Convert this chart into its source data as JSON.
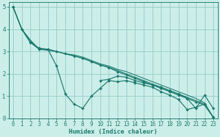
{
  "xlabel": "Humidex (Indice chaleur)",
  "bg_color": "#cceee8",
  "grid_color": "#99cccc",
  "line_color": "#1a7a6e",
  "xlim": [
    -0.5,
    23.5
  ],
  "ylim": [
    0,
    5.2
  ],
  "xticks": [
    0,
    1,
    2,
    3,
    4,
    5,
    6,
    7,
    8,
    9,
    10,
    11,
    12,
    13,
    14,
    15,
    16,
    17,
    18,
    19,
    20,
    21,
    22,
    23
  ],
  "yticks": [
    0,
    1,
    2,
    3,
    4,
    5
  ],
  "series": [
    {
      "y": [
        5.0,
        4.0,
        3.4,
        3.1,
        3.1,
        2.35,
        1.1,
        0.65,
        0.45,
        1.0,
        1.35,
        1.7,
        1.65,
        1.7,
        1.6,
        1.5,
        1.4,
        1.2,
        1.05,
        0.85,
        0.4,
        0.5,
        0.65,
        0.05
      ],
      "marker": "D",
      "markersize": 2.0,
      "linewidth": 0.9,
      "with_markers": true
    },
    {
      "y": [
        5.0,
        4.0,
        3.5,
        3.1,
        3.1,
        3.0,
        2.9,
        2.85,
        2.75,
        2.6,
        2.45,
        2.35,
        2.2,
        2.1,
        1.95,
        1.8,
        1.65,
        1.5,
        1.35,
        1.2,
        1.05,
        0.9,
        0.7,
        0.05
      ],
      "marker": null,
      "linewidth": 0.8,
      "with_markers": false
    },
    {
      "y": [
        5.0,
        4.0,
        3.5,
        3.1,
        3.05,
        3.0,
        2.9,
        2.8,
        2.7,
        2.55,
        2.4,
        2.3,
        2.15,
        2.0,
        1.85,
        1.7,
        1.55,
        1.4,
        1.25,
        1.1,
        0.95,
        0.8,
        0.65,
        0.05
      ],
      "marker": null,
      "linewidth": 0.8,
      "with_markers": false
    },
    {
      "y": [
        5.0,
        4.0,
        3.4,
        3.15,
        3.1,
        3.0,
        2.9,
        2.8,
        2.7,
        2.55,
        2.4,
        2.28,
        2.1,
        1.95,
        1.8,
        1.65,
        1.5,
        1.35,
        1.2,
        1.05,
        0.9,
        0.75,
        0.6,
        0.05
      ],
      "marker": "D",
      "markersize": 2.0,
      "linewidth": 0.9,
      "with_markers": true
    },
    {
      "y": [
        null,
        null,
        null,
        null,
        null,
        null,
        null,
        null,
        null,
        null,
        1.7,
        1.75,
        1.9,
        1.85,
        1.7,
        1.6,
        1.5,
        1.4,
        1.25,
        1.1,
        0.9,
        0.45,
        1.05,
        0.45
      ],
      "marker": "D",
      "markersize": 2.0,
      "linewidth": 0.9,
      "with_markers": true
    }
  ]
}
